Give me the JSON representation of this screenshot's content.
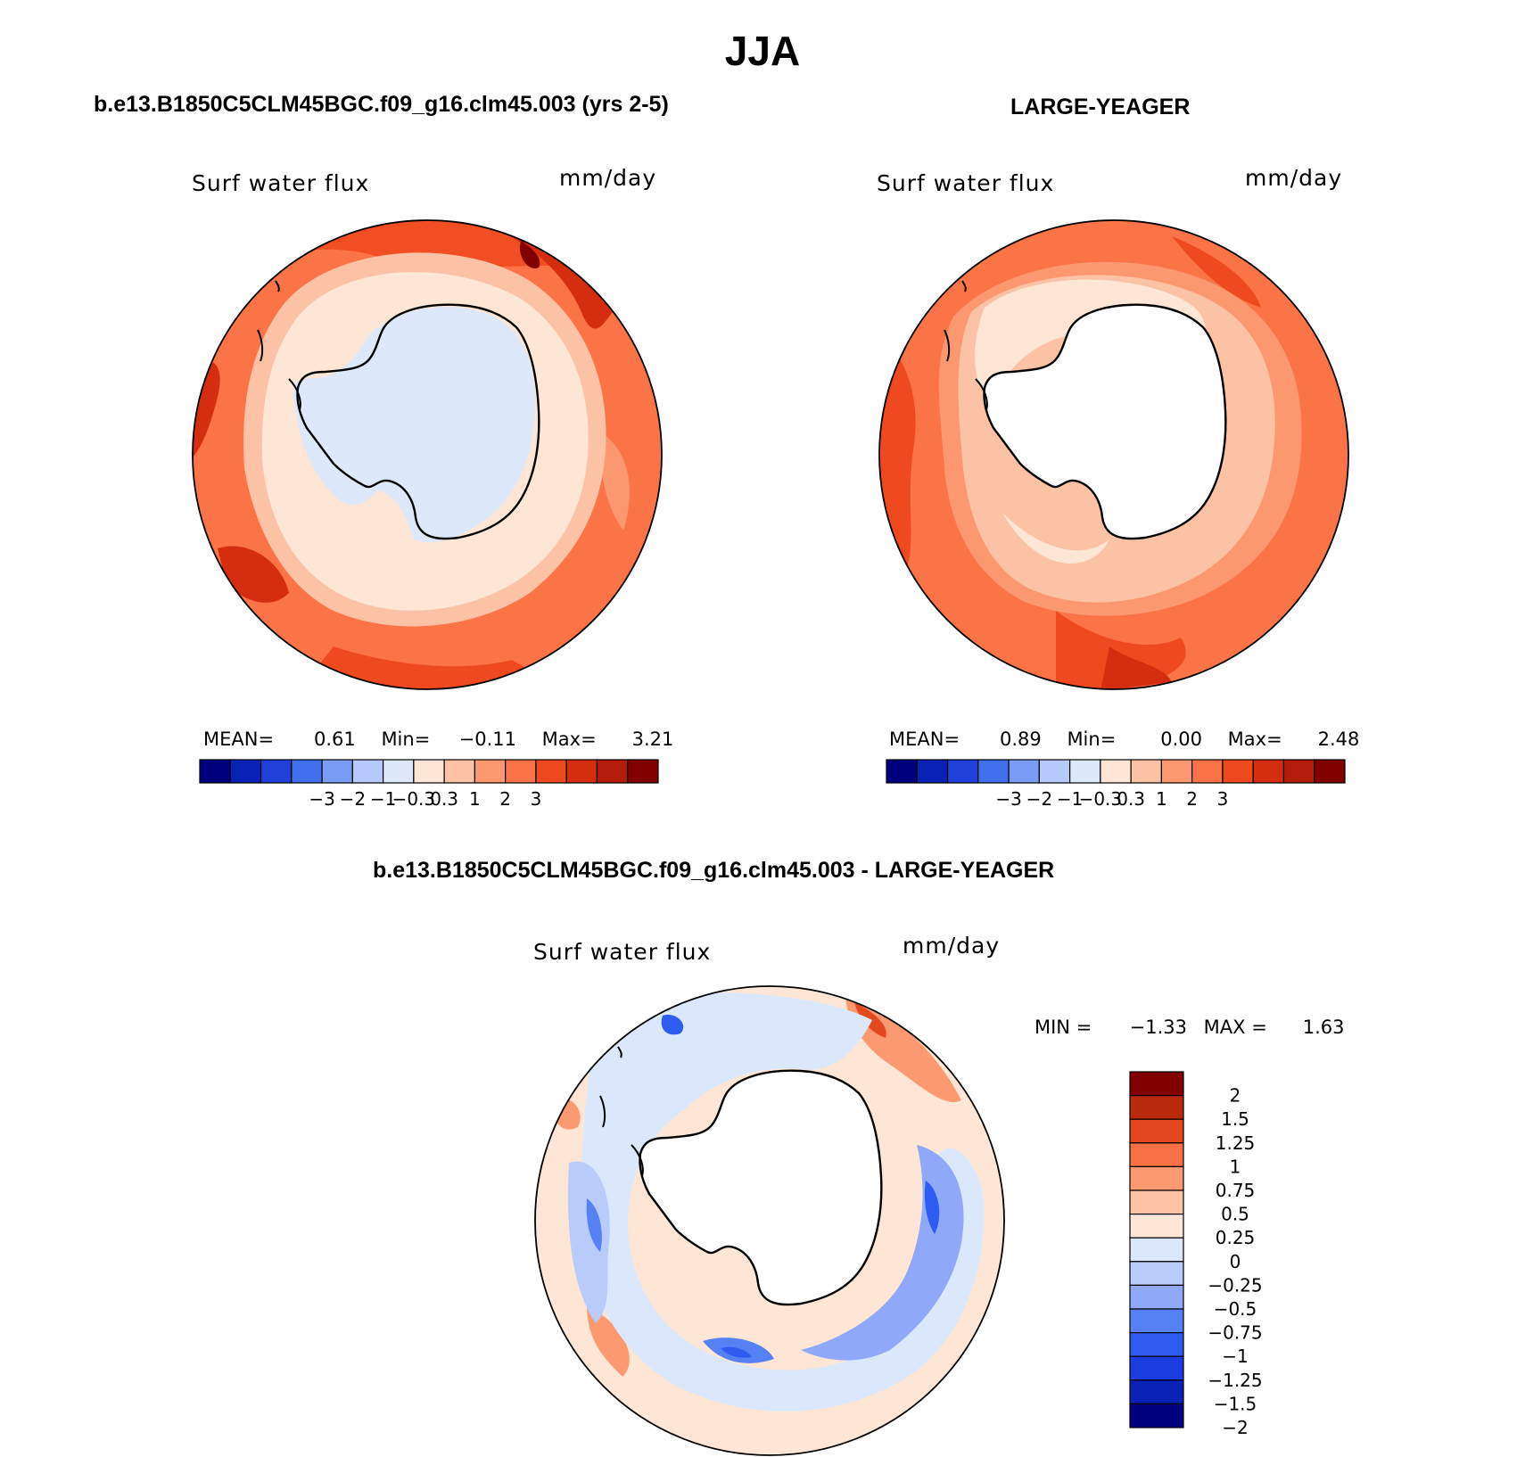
{
  "figure": {
    "season": "JJA",
    "colors": {
      "abs_scale": [
        "#00007f",
        "#0a21b5",
        "#1f3fd9",
        "#4170ec",
        "#7b9cf5",
        "#b5c9fb",
        "#dde9fb",
        "#fde6d5",
        "#fcc2a5",
        "#fc9870",
        "#fa7448",
        "#ef4a1f",
        "#d52d10",
        "#b41c0a",
        "#800000"
      ],
      "diff_scale": [
        "#00007f",
        "#0a21b5",
        "#1b3de0",
        "#2f5cf0",
        "#5581f5",
        "#8fa9f8",
        "#b8cbfb",
        "#dbe8fb",
        "#fde6d5",
        "#fcc4a5",
        "#fb9a70",
        "#f77147",
        "#e4481f",
        "#b92a0c",
        "#800000"
      ]
    }
  },
  "panels": {
    "test": {
      "title": "b.e13.B1850C5CLM45BGC.f09_g16.clm45.003 (yrs 2-5)",
      "variable": "Surf  water  flux",
      "units": "mm/day",
      "mean_label": "MEAN=",
      "mean": "0.61",
      "min_label": "Min=",
      "min": "−0.11",
      "max_label": "Max=",
      "max": "3.21",
      "colorbar_ticks": [
        "−3",
        "−2",
        "−1",
        "−0.3",
        "0.3",
        "1",
        "2",
        "3"
      ]
    },
    "reference": {
      "title": "LARGE-YEAGER",
      "variable": "Surf  water  flux",
      "units": "mm/day",
      "mean_label": "MEAN=",
      "mean": "0.89",
      "min_label": "Min=",
      "min": "0.00",
      "max_label": "Max=",
      "max": "2.48",
      "colorbar_ticks": [
        "−3",
        "−2",
        "−1",
        "−0.3",
        "0.3",
        "1",
        "2",
        "3"
      ]
    },
    "difference": {
      "title": "b.e13.B1850C5CLM45BGC.f09_g16.clm45.003 - LARGE-YEAGER",
      "variable": "Surf  water  flux",
      "units": "mm/day",
      "min_label": "MIN =",
      "min": "−1.33",
      "max_label": "MAX =",
      "max": "1.63",
      "colorbar_ticks": [
        "2",
        "1.5",
        "1.25",
        "1",
        "0.75",
        "0.5",
        "0.25",
        "0",
        "−0.25",
        "−0.5",
        "−0.75",
        "−1",
        "−1.25",
        "−1.5",
        "−2"
      ]
    }
  }
}
